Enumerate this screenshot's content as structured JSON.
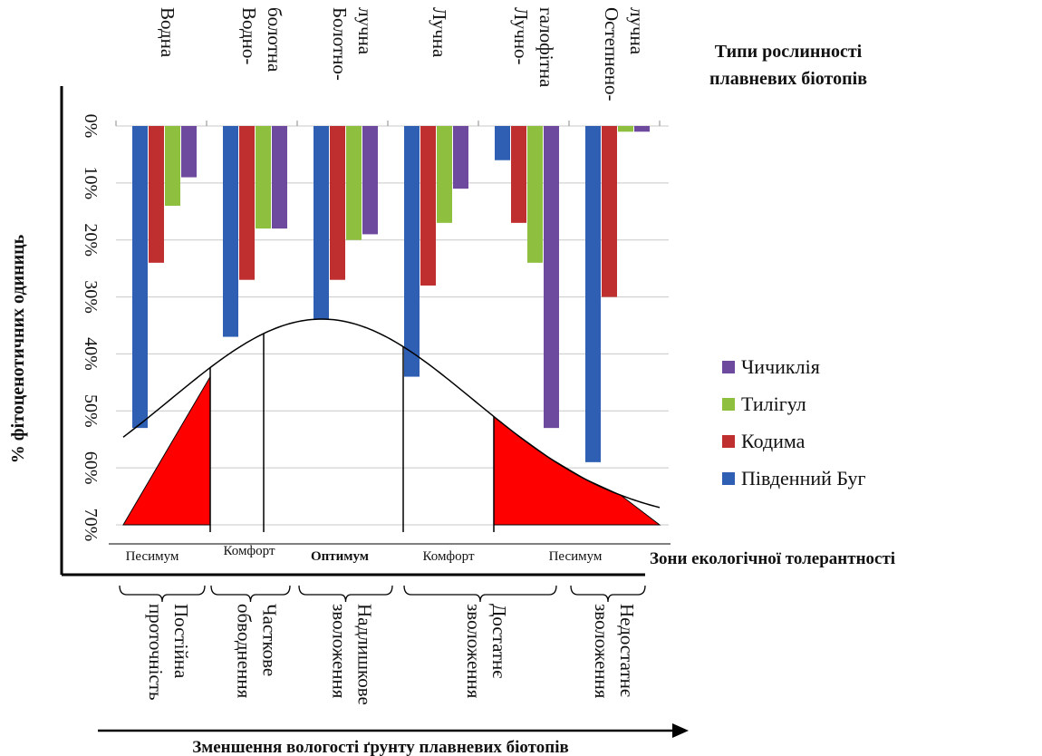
{
  "chart_data": {
    "type": "bar",
    "orientation": "vertical-downward",
    "categories": [
      {
        "lines": [
          "Водна"
        ]
      },
      {
        "lines": [
          "Водно-",
          "болотна"
        ]
      },
      {
        "lines": [
          "Болотно-",
          "лучна"
        ]
      },
      {
        "lines": [
          "Лучна"
        ]
      },
      {
        "lines": [
          "Лучно-",
          "галофітна"
        ]
      },
      {
        "lines": [
          "Остепнено-",
          "лучна"
        ]
      }
    ],
    "series": [
      {
        "name": "Південний Буг",
        "color": "#2f5fb3",
        "values": [
          53,
          37,
          34,
          44,
          6,
          59
        ]
      },
      {
        "name": "Кодима",
        "color": "#bf2f2f",
        "values": [
          24,
          27,
          27,
          28,
          17,
          30
        ]
      },
      {
        "name": "Тилігул",
        "color": "#8fbf3f",
        "values": [
          14,
          18,
          20,
          17,
          24,
          1
        ]
      },
      {
        "name": "Чичиклія",
        "color": "#6e4a9e",
        "values": [
          9,
          18,
          19,
          11,
          53,
          1
        ]
      }
    ],
    "yticks": [
      "0%",
      "10%",
      "20%",
      "30%",
      "40%",
      "50%",
      "60%",
      "70%"
    ],
    "ylim": [
      0,
      70
    ],
    "ylabel": "% фітоценотичних одиниць",
    "category_axis_title": [
      "Типи рослинності",
      "плавневих біотопів"
    ],
    "legend_order": [
      "Чичиклія",
      "Тилігул",
      "Кодима",
      "Південний Буг"
    ],
    "legend_position": "right",
    "grid": true,
    "tolerance_zones": {
      "title": "Зони екологічної толерантності",
      "labels": [
        "Песимум",
        "Комфорт",
        "Оптимум",
        "Комфорт",
        "Песимум"
      ]
    },
    "moisture_groups": [
      {
        "lines": [
          "Постійна",
          "проточність"
        ]
      },
      {
        "lines": [
          "Часткове",
          "обводнення"
        ]
      },
      {
        "lines": [
          "Надлишкове",
          "зволоження"
        ]
      },
      {
        "lines": [
          "Достатнє",
          "зволоження"
        ]
      },
      {
        "lines": [
          "Недостатнє",
          "зволоження"
        ]
      }
    ],
    "bottom_axis_title": "Зменшення вологості ґрунту плавневих біотопів"
  }
}
